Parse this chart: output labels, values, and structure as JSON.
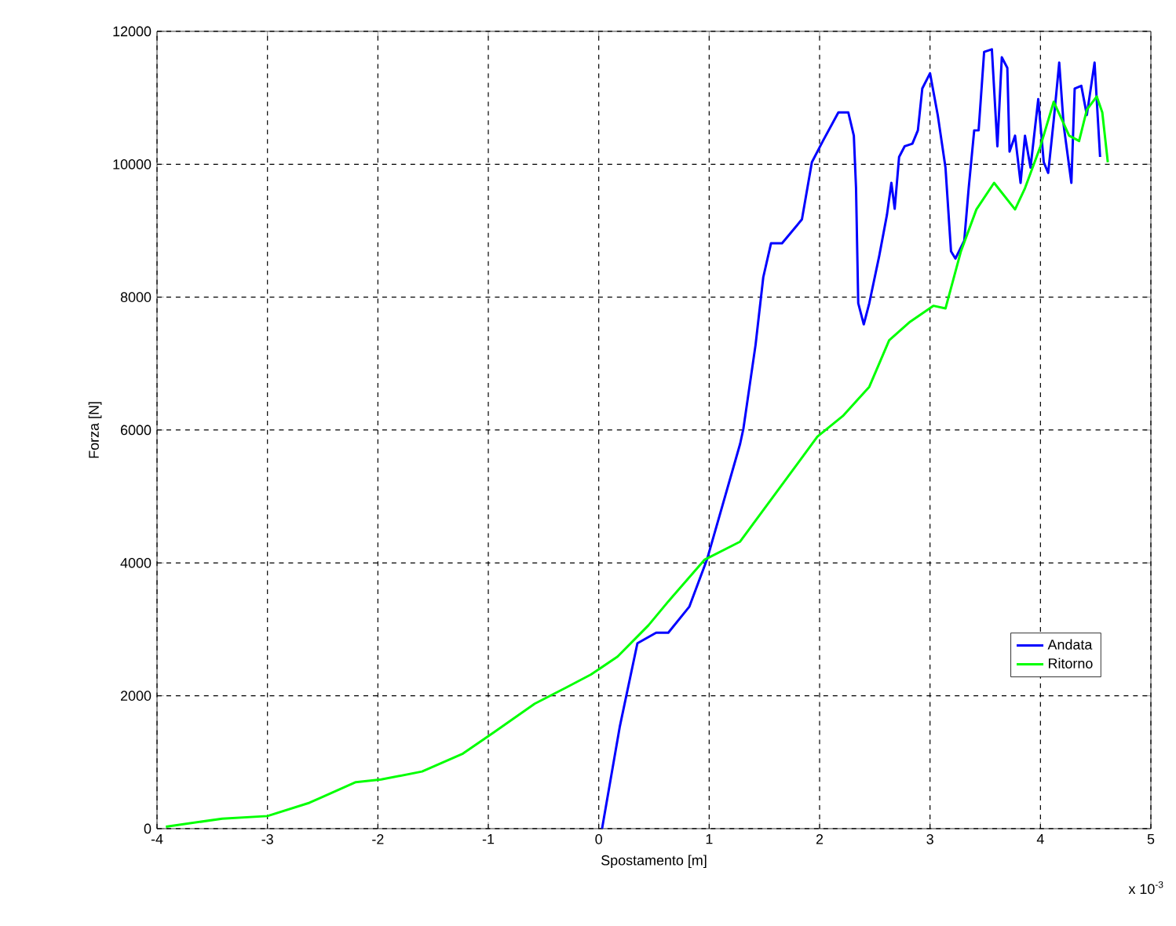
{
  "chart_data": {
    "type": "line",
    "xlabel": "Spostamento [m]",
    "ylabel": "Forza [N]",
    "annotations": [
      "x 10$^{-3}$"
    ],
    "xlim": [
      -4,
      5
    ],
    "ylim": [
      0,
      12000
    ],
    "xticks": [
      -4,
      -3,
      -2,
      -1,
      0,
      1,
      2,
      3,
      4,
      5
    ],
    "yticks": [
      0,
      2000,
      4000,
      6000,
      8000,
      10000,
      12000
    ],
    "grid": true,
    "legend": "bottom right",
    "marker": "none",
    "line_style": "solid",
    "series": [
      {
        "name": "Andata",
        "color": "#0000ff",
        "x": [
          0.03,
          0.19,
          0.35,
          0.52,
          0.63,
          0.82,
          0.98,
          1.28,
          1.31,
          1.42,
          1.49,
          1.56,
          1.66,
          1.84,
          1.93,
          2.03,
          2.17,
          2.26,
          2.31,
          2.33,
          2.35,
          2.4,
          2.45,
          2.54,
          2.61,
          2.65,
          2.68,
          2.72,
          2.77,
          2.84,
          2.89,
          2.93,
          3.0,
          3.07,
          3.14,
          3.19,
          3.23,
          3.31,
          3.35,
          3.4,
          3.44,
          3.49,
          3.56,
          3.61,
          3.65,
          3.7,
          3.72,
          3.77,
          3.82,
          3.86,
          3.91,
          3.98,
          4.03,
          4.07,
          4.12,
          4.17,
          4.21,
          4.28,
          4.31,
          4.37,
          4.42,
          4.49,
          4.54
        ],
        "values": [
          0,
          1530,
          2790,
          2950,
          2950,
          3340,
          4050,
          5790,
          6020,
          7280,
          8300,
          8810,
          8810,
          9170,
          10030,
          10350,
          10780,
          10780,
          10430,
          9640,
          7910,
          7590,
          7910,
          8620,
          9240,
          9720,
          9330,
          10110,
          10270,
          10310,
          10510,
          11140,
          11370,
          10740,
          9950,
          8690,
          8580,
          8850,
          9640,
          10510,
          10510,
          11690,
          11730,
          10270,
          11610,
          11450,
          10190,
          10430,
          9720,
          10430,
          9950,
          10980,
          10030,
          9870,
          10660,
          11530,
          10590,
          9720,
          11140,
          11180,
          10740,
          11530,
          10110
        ]
      },
      {
        "name": "Ritorno",
        "color": "#00ff00",
        "x": [
          -3.92,
          -3.41,
          -3.0,
          -2.62,
          -2.2,
          -1.97,
          -1.6,
          -1.23,
          -0.95,
          -0.58,
          -0.3,
          -0.07,
          0.17,
          0.45,
          0.63,
          0.96,
          1.28,
          1.98,
          2.21,
          2.45,
          2.63,
          2.82,
          3.03,
          3.14,
          3.28,
          3.42,
          3.58,
          3.77,
          3.86,
          4.0,
          4.12,
          4.26,
          4.35,
          4.42,
          4.51,
          4.56,
          4.61
        ],
        "values": [
          30,
          150,
          190,
          390,
          700,
          740,
          860,
          1130,
          1450,
          1880,
          2120,
          2320,
          2590,
          3060,
          3420,
          4050,
          4320,
          5900,
          6210,
          6650,
          7350,
          7630,
          7870,
          7830,
          8690,
          9320,
          9720,
          9320,
          9640,
          10270,
          10940,
          10430,
          10350,
          10820,
          11020,
          10780,
          10030
        ]
      }
    ]
  }
}
